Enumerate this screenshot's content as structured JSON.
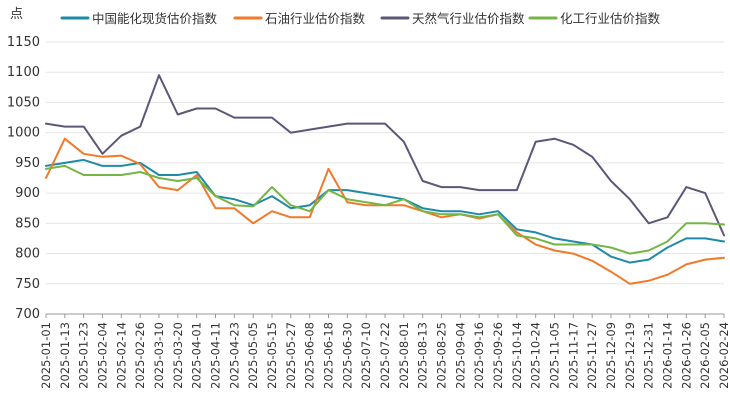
{
  "chart_data": {
    "type": "line",
    "unit_label": "点",
    "ylim": [
      700,
      1150
    ],
    "yticks": [
      700,
      750,
      800,
      850,
      900,
      950,
      1000,
      1050,
      1100,
      1150
    ],
    "x": [
      "2025-01-01",
      "2025-01-13",
      "2025-01-23",
      "2025-02-04",
      "2025-02-14",
      "2025-02-26",
      "2025-03-10",
      "2025-03-20",
      "2025-04-01",
      "2025-04-11",
      "2025-04-23",
      "2025-05-05",
      "2025-05-15",
      "2025-05-27",
      "2025-06-08",
      "2025-06-18",
      "2025-06-30",
      "2025-07-10",
      "2025-07-22",
      "2025-08-01",
      "2025-08-13",
      "2025-08-25",
      "2025-09-04",
      "2025-09-16",
      "2025-09-26",
      "2025-10-14",
      "2025-10-24",
      "2025-11-05",
      "2025-11-17",
      "2025-11-27",
      "2025-12-09",
      "2025-12-19",
      "2025-12-31",
      "2026-01-14",
      "2026-01-26",
      "2026-02-05",
      "2026-02-24"
    ],
    "series": [
      {
        "name": "中国能化现货估价指数",
        "color": "#1f8aa6",
        "values": [
          945,
          950,
          955,
          945,
          945,
          950,
          930,
          930,
          935,
          895,
          890,
          880,
          895,
          875,
          880,
          905,
          905,
          900,
          895,
          890,
          875,
          870,
          870,
          865,
          870,
          840,
          835,
          825,
          820,
          815,
          795,
          785,
          790,
          810,
          825,
          825,
          820
        ]
      },
      {
        "name": "石油行业估价指数",
        "color": "#f07a2a",
        "values": [
          925,
          990,
          965,
          960,
          962,
          948,
          910,
          905,
          930,
          875,
          875,
          850,
          870,
          860,
          860,
          940,
          885,
          880,
          880,
          880,
          870,
          860,
          865,
          858,
          865,
          835,
          815,
          805,
          800,
          788,
          770,
          750,
          755,
          765,
          782,
          790,
          793
        ]
      },
      {
        "name": "天然气行业估价指数",
        "color": "#5c5677",
        "values": [
          1015,
          1010,
          1010,
          965,
          995,
          1010,
          1095,
          1030,
          1040,
          1040,
          1025,
          1025,
          1025,
          1000,
          1005,
          1010,
          1015,
          1015,
          1015,
          985,
          920,
          910,
          910,
          905,
          905,
          905,
          985,
          990,
          980,
          960,
          920,
          890,
          850,
          860,
          910,
          900,
          830
        ]
      },
      {
        "name": "化工行业估价指数",
        "color": "#74b545",
        "values": [
          940,
          945,
          930,
          930,
          930,
          935,
          925,
          920,
          925,
          895,
          880,
          878,
          910,
          880,
          870,
          905,
          890,
          885,
          880,
          890,
          870,
          865,
          865,
          860,
          865,
          830,
          825,
          815,
          815,
          815,
          810,
          800,
          805,
          820,
          850,
          850,
          848
        ]
      }
    ]
  }
}
